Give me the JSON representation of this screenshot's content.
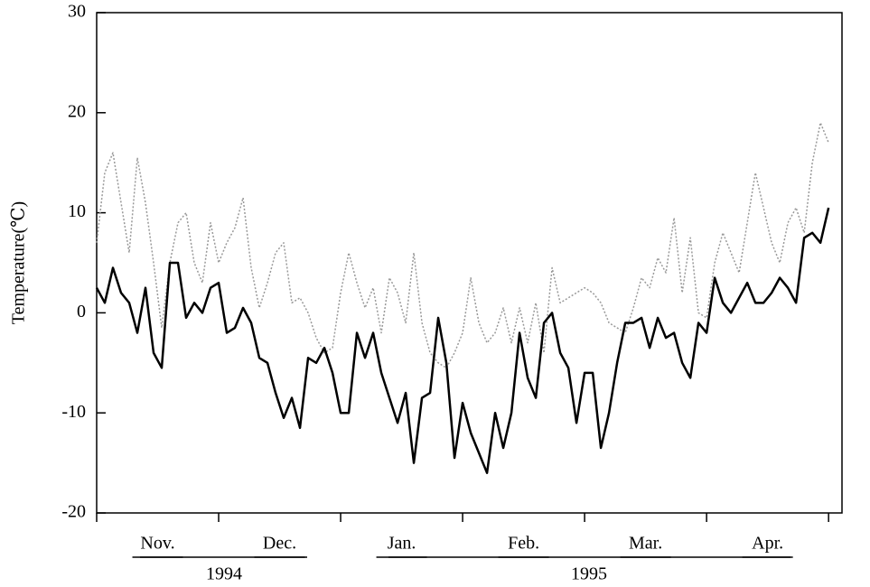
{
  "chart_data": {
    "type": "line",
    "y_label": "Temperature(℃)",
    "month_labels": [
      "Nov.",
      "Dec.",
      "Jan.",
      "Feb.",
      "Mar.",
      "Apr."
    ],
    "year_labels": [
      "1994",
      "1995"
    ],
    "x": [
      0,
      2,
      4,
      6,
      8,
      10,
      12,
      14,
      16,
      18,
      20,
      22,
      24,
      26,
      28,
      30,
      32,
      34,
      36,
      38,
      40,
      42,
      44,
      46,
      48,
      50,
      52,
      54,
      56,
      58,
      60,
      62,
      64,
      66,
      68,
      70,
      72,
      74,
      76,
      78,
      80,
      82,
      84,
      86,
      88,
      90,
      92,
      94,
      96,
      98,
      100,
      102,
      104,
      106,
      108,
      110,
      112,
      114,
      116,
      118,
      120,
      122,
      124,
      126,
      128,
      130,
      132,
      134,
      136,
      138,
      140,
      142,
      144,
      146,
      148,
      150,
      152,
      154,
      156,
      158,
      160,
      162,
      164,
      166,
      168,
      170,
      172,
      174,
      176,
      178,
      180
    ],
    "xlim": [
      0,
      183.3
    ],
    "xticks": [
      0,
      30,
      60,
      90,
      120,
      150,
      180
    ],
    "ylim": [
      -20,
      30
    ],
    "yticks": [
      -20,
      -10,
      0,
      10,
      20,
      30
    ],
    "series": [
      {
        "color": "#999999",
        "style": "dotted",
        "values": [
          7,
          14,
          16,
          11,
          6,
          15.5,
          11,
          5,
          -1.5,
          5,
          9,
          10,
          5,
          3,
          9,
          5,
          7,
          8.5,
          11.5,
          4.5,
          0.5,
          3,
          6,
          7,
          1,
          1.5,
          0,
          -2.5,
          -4,
          -3.5,
          2,
          6,
          3,
          0.5,
          2.5,
          -2,
          3.5,
          2,
          -1,
          6,
          -1,
          -4,
          -5,
          -5.5,
          -4,
          -2,
          3.5,
          -1,
          -3,
          -2,
          0.5,
          -3,
          0.5,
          -3,
          1,
          -4,
          4.5,
          1,
          1.5,
          2,
          2.5,
          2,
          1,
          -1,
          -1.5,
          -2,
          0.5,
          3.5,
          2.5,
          5.5,
          4,
          9.5,
          2,
          7.5,
          0,
          -0.5,
          5,
          8,
          6,
          4,
          9,
          14,
          10.5,
          7,
          5,
          9,
          10.5,
          8,
          15,
          19,
          17
        ]
      },
      {
        "color": "#000000",
        "style": "solid",
        "values": [
          2.5,
          1,
          4.5,
          2,
          1,
          -2,
          2.5,
          -4,
          -5.5,
          5,
          5,
          -0.5,
          1,
          0,
          2.5,
          3,
          -2,
          -1.5,
          0.5,
          -1,
          -4.5,
          -5,
          -8,
          -10.5,
          -8.5,
          -11.5,
          -4.5,
          -5,
          -3.5,
          -6,
          -10,
          -10,
          -2,
          -4.5,
          -2,
          -6,
          -8.5,
          -11,
          -8,
          -15,
          -8.5,
          -8,
          -0.5,
          -5,
          -14.5,
          -9,
          -12,
          -14,
          -16,
          -10,
          -13.5,
          -10,
          -2,
          -6.5,
          -8.5,
          -1,
          0,
          -4,
          -5.5,
          -11,
          -6,
          -6,
          -13.5,
          -10,
          -5,
          -1,
          -1,
          -0.5,
          -3.5,
          -0.5,
          -2.5,
          -2,
          -5,
          -6.5,
          -1,
          -2,
          3.5,
          1,
          0,
          1.5,
          3,
          1,
          1,
          2,
          3.5,
          2.5,
          1,
          7.5,
          8,
          7,
          10.5
        ]
      }
    ]
  }
}
